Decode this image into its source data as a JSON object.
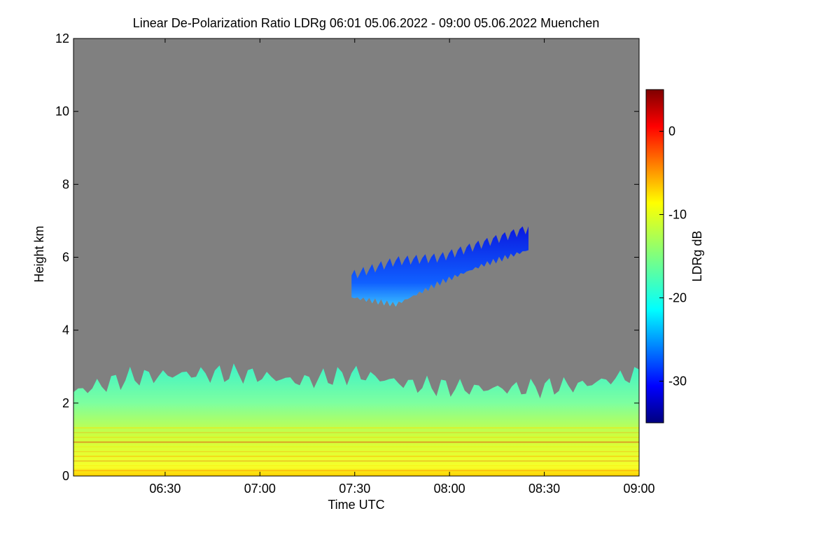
{
  "chart_data": {
    "type": "heatmap",
    "title": "Linear De-Polarization Ratio LDRg   06:01 05.06.2022 - 09:00 05.06.2022 Muenchen",
    "xlabel": "Time UTC",
    "ylabel": "Height km",
    "colorbar_label": "LDRg dB",
    "x_range_minutes_utc": [
      361,
      540
    ],
    "x_ticks": [
      {
        "minute": 390,
        "label": "06:30"
      },
      {
        "minute": 420,
        "label": "07:00"
      },
      {
        "minute": 450,
        "label": "07:30"
      },
      {
        "minute": 480,
        "label": "08:00"
      },
      {
        "minute": 510,
        "label": "08:30"
      },
      {
        "minute": 540,
        "label": "09:00"
      }
    ],
    "y_range_km": [
      0,
      12
    ],
    "y_ticks": [
      {
        "value": 0,
        "label": "0"
      },
      {
        "value": 2,
        "label": "2"
      },
      {
        "value": 4,
        "label": "4"
      },
      {
        "value": 6,
        "label": "6"
      },
      {
        "value": 8,
        "label": "8"
      },
      {
        "value": 10,
        "label": "10"
      },
      {
        "value": 12,
        "label": "12"
      }
    ],
    "colorbar_range_db": [
      -35,
      5
    ],
    "colorbar_ticks": [
      {
        "value": 0,
        "label": "0"
      },
      {
        "value": -10,
        "label": "-10"
      },
      {
        "value": -20,
        "label": "-20"
      },
      {
        "value": -30,
        "label": "-30"
      }
    ],
    "colormap": "jet",
    "no_data_color": "#808080",
    "features": [
      {
        "name": "boundary-layer",
        "time_range_minutes": [
          361,
          540
        ],
        "top_height_km": [
          2.3,
          2.7,
          2.8,
          2.8,
          2.6,
          2.8,
          2.5,
          2.4,
          2.4,
          2.5,
          2.8
        ],
        "ldr_db_near_surface": -8,
        "ldr_db_upper": -18
      },
      {
        "name": "cirrus-cloud",
        "time_range_minutes": [
          449,
          505
        ],
        "base_height_km": [
          4.9,
          4.7,
          5.3,
          5.8,
          6.2
        ],
        "top_height_km": [
          5.5,
          5.9,
          6.0,
          6.4,
          6.8
        ],
        "ldr_db": -30
      }
    ]
  }
}
